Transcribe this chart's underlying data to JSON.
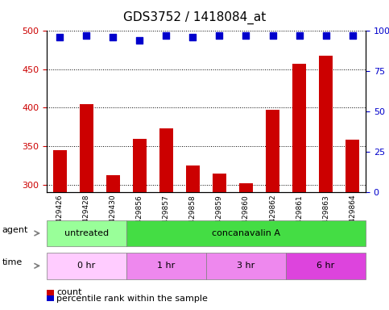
{
  "title": "GDS3752 / 1418084_at",
  "samples": [
    "GSM429426",
    "GSM429428",
    "GSM429430",
    "GSM429856",
    "GSM429857",
    "GSM429858",
    "GSM429859",
    "GSM429860",
    "GSM429862",
    "GSM429861",
    "GSM429863",
    "GSM429864"
  ],
  "count_values": [
    345,
    405,
    312,
    360,
    373,
    325,
    314,
    302,
    397,
    457,
    468,
    358
  ],
  "percentile_values": [
    96,
    97,
    96,
    94,
    97,
    96,
    97,
    97,
    97,
    97,
    97,
    97
  ],
  "ylim_left": [
    290,
    500
  ],
  "ylim_right": [
    0,
    100
  ],
  "yticks_left": [
    300,
    350,
    400,
    450,
    500
  ],
  "yticks_right": [
    0,
    25,
    50,
    75,
    100
  ],
  "bar_color": "#cc0000",
  "dot_color": "#0000cc",
  "agent_labels": [
    {
      "text": "untreated",
      "start": 0,
      "end": 3,
      "color": "#99ff99"
    },
    {
      "text": "concanavalin A",
      "start": 3,
      "end": 12,
      "color": "#44dd44"
    }
  ],
  "time_labels": [
    {
      "text": "0 hr",
      "start": 0,
      "end": 3,
      "color": "#ffccff"
    },
    {
      "text": "1 hr",
      "start": 3,
      "end": 6,
      "color": "#ee88ee"
    },
    {
      "text": "3 hr",
      "start": 6,
      "end": 9,
      "color": "#ee88ee"
    },
    {
      "text": "6 hr",
      "start": 9,
      "end": 12,
      "color": "#dd44dd"
    }
  ],
  "agent_row_label": "agent",
  "time_row_label": "time",
  "legend_count_label": "count",
  "legend_pct_label": "percentile rank within the sample",
  "background_color": "#ffffff",
  "grid_color": "#000000",
  "tick_color_left": "#cc0000",
  "tick_color_right": "#0000cc"
}
